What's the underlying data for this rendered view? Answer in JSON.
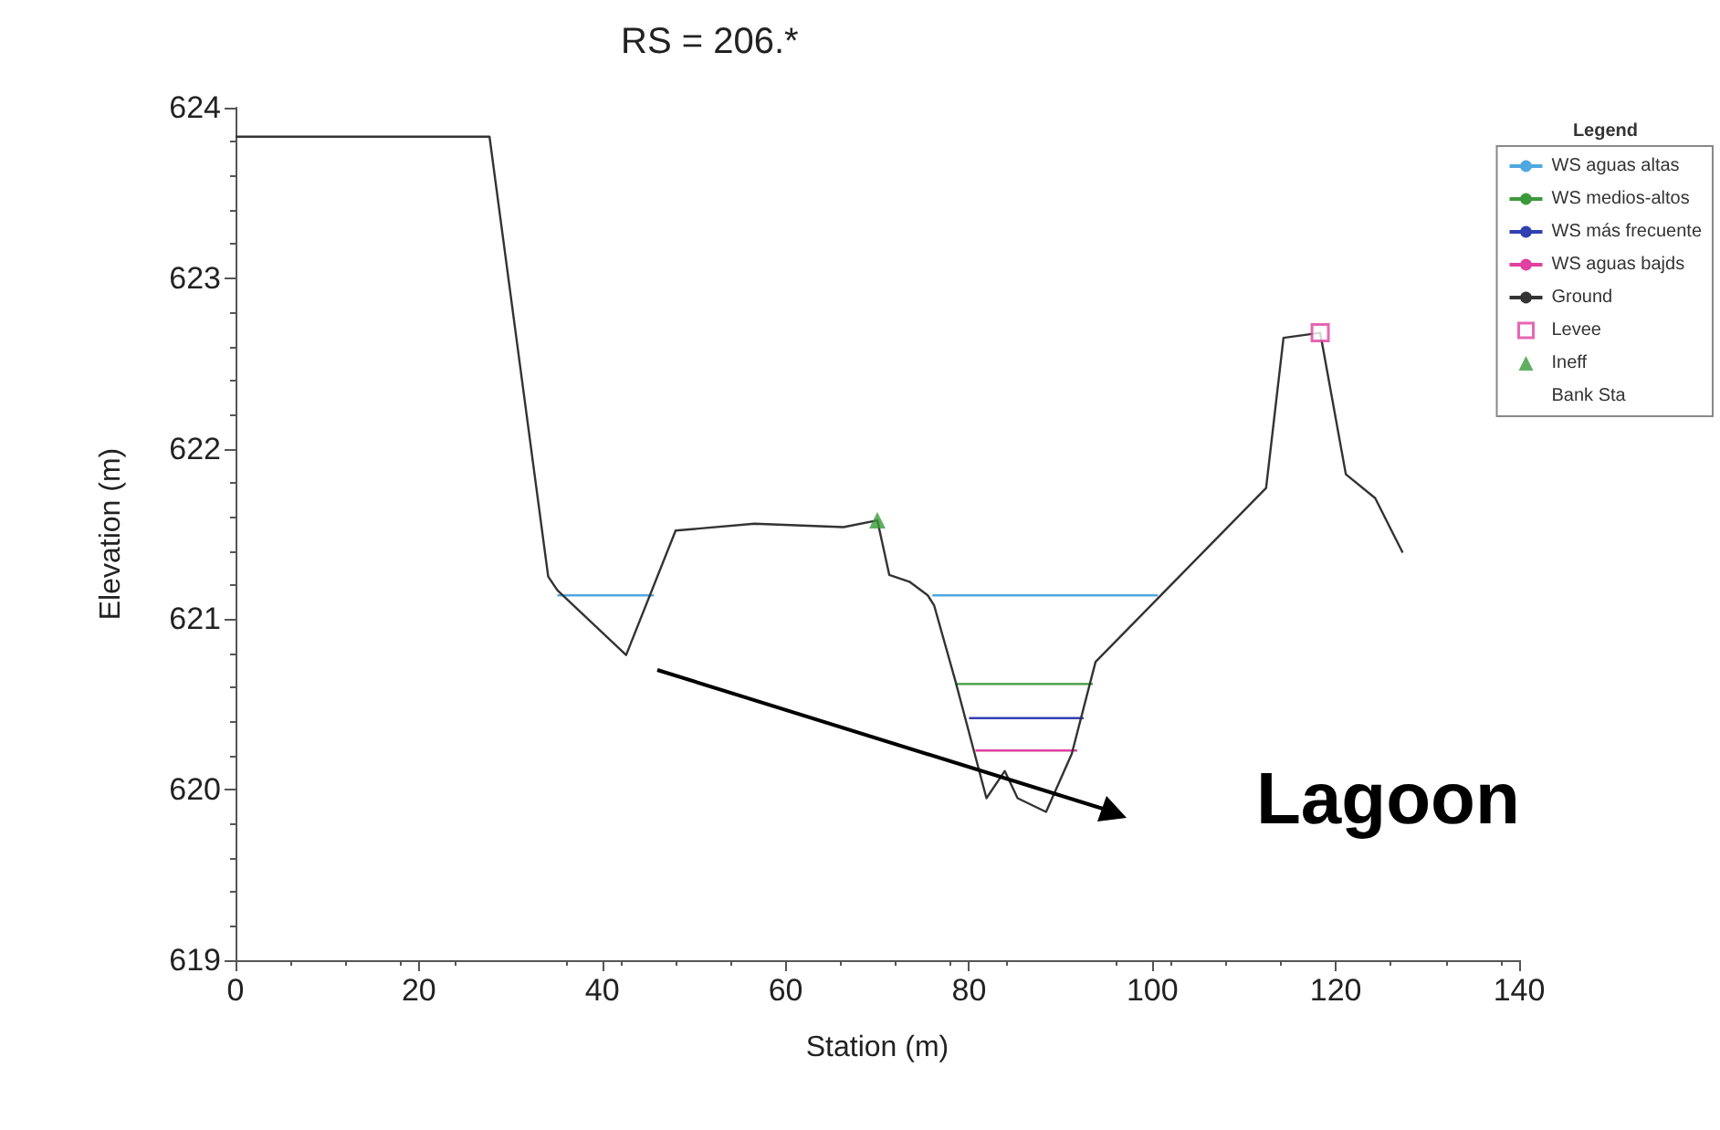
{
  "chart_data": {
    "type": "line",
    "title": "RS = 206.*",
    "xlabel": "Station (m)",
    "ylabel": "Elevation (m)",
    "legend_title": "Legend",
    "legend": "top right",
    "grid": false,
    "marker": "none",
    "line_style": "solid",
    "xlim": [
      0,
      140
    ],
    "xticks": [
      0,
      20,
      40,
      60,
      80,
      100,
      120,
      140
    ],
    "ylim": [
      619,
      624
    ],
    "yticks": [
      619,
      620,
      621,
      622,
      623,
      624
    ],
    "series": [
      {
        "name": "WS aguas altas",
        "color": "#4fa8e0",
        "x": [
          35.1,
          45.6,
          60,
          76,
          100.6
        ],
        "values": [
          621.14,
          621.14,
          null,
          621.14,
          621.14
        ]
      },
      {
        "name": "WS medios-altos",
        "color": "#3a9a3a",
        "x": [
          78.5,
          93.5
        ],
        "values": [
          620.62,
          620.62
        ]
      },
      {
        "name": "WS más frecuente",
        "color": "#3040b0",
        "x": [
          80,
          92.5
        ],
        "values": [
          620.42,
          620.42
        ]
      },
      {
        "name": "WS aguas bajds",
        "color": "#e040a0",
        "x": [
          80.7,
          91.8
        ],
        "values": [
          620.23,
          620.23
        ]
      },
      {
        "name": "Ground",
        "color": "#333333",
        "x": [
          0,
          27.7,
          34.1,
          35.1,
          42.6,
          48,
          56.6,
          66.3,
          70,
          71.3,
          73.5,
          75.5,
          76.2,
          78.5,
          81.9,
          83.9,
          85.3,
          88.4,
          91.2,
          93.8,
          112.4,
          114.3,
          118.3,
          121.1,
          124.3,
          127.3
        ],
        "values": [
          623.83,
          623.83,
          621.25,
          621.17,
          620.79,
          621.52,
          621.56,
          621.54,
          621.58,
          621.26,
          621.22,
          621.14,
          621.08,
          620.64,
          619.95,
          620.11,
          619.95,
          619.87,
          620.21,
          620.75,
          621.77,
          622.65,
          622.68,
          621.85,
          621.71,
          621.39
        ]
      },
      {
        "name": "Levee",
        "type": "scatter",
        "marker": "square",
        "color": "#e040a0",
        "x": [
          118.3
        ],
        "values": [
          622.68
        ]
      },
      {
        "name": "Ineff",
        "type": "scatter",
        "marker": "triangle",
        "color": "#3a9a3a",
        "x": [
          70
        ],
        "values": [
          621.58
        ]
      },
      {
        "name": "Bank Sta",
        "type": "scatter",
        "marker": "none"
      }
    ],
    "annotations": [
      "Lagoon"
    ]
  }
}
